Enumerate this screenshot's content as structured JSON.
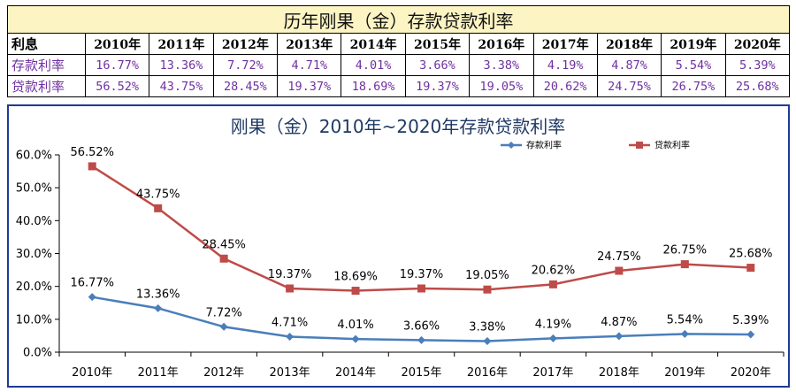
{
  "table": {
    "title": "历年刚果（金）存款贷款利率",
    "header_label": "利息",
    "years": [
      "2010年",
      "2011年",
      "2012年",
      "2013年",
      "2014年",
      "2015年",
      "2016年",
      "2017年",
      "2018年",
      "2019年",
      "2020年"
    ],
    "rows": [
      {
        "label": "存款利率",
        "values": [
          "16.77%",
          "13.36%",
          "7.72%",
          "4.71%",
          "4.01%",
          "3.66%",
          "3.38%",
          "4.19%",
          "4.87%",
          "5.54%",
          "5.39%"
        ]
      },
      {
        "label": "贷款利率",
        "values": [
          "56.52%",
          "43.75%",
          "28.45%",
          "19.37%",
          "18.69%",
          "19.37%",
          "19.05%",
          "20.62%",
          "24.75%",
          "26.75%",
          "25.68%"
        ]
      }
    ]
  },
  "chart_data": {
    "type": "line",
    "title": "刚果（金）2010年~2020年存款贷款利率",
    "categories": [
      "2010年",
      "2011年",
      "2012年",
      "2013年",
      "2014年",
      "2015年",
      "2016年",
      "2017年",
      "2018年",
      "2019年",
      "2020年"
    ],
    "series": [
      {
        "name": "存款利率",
        "color": "#4a7ebb",
        "marker": "diamond",
        "values": [
          16.77,
          13.36,
          7.72,
          4.71,
          4.01,
          3.66,
          3.38,
          4.19,
          4.87,
          5.54,
          5.39
        ],
        "labels": [
          "16.77%",
          "13.36%",
          "7.72%",
          "4.71%",
          "4.01%",
          "3.66%",
          "3.38%",
          "4.19%",
          "4.87%",
          "5.54%",
          "5.39%"
        ]
      },
      {
        "name": "贷款利率",
        "color": "#be4b48",
        "marker": "square",
        "values": [
          56.52,
          43.75,
          28.45,
          19.37,
          18.69,
          19.37,
          19.05,
          20.62,
          24.75,
          26.75,
          25.68
        ],
        "labels": [
          "56.52%",
          "43.75%",
          "28.45%",
          "19.37%",
          "18.69%",
          "19.37%",
          "19.05%",
          "20.62%",
          "24.75%",
          "26.75%",
          "25.68%"
        ]
      }
    ],
    "ylim": [
      0,
      60
    ],
    "yticks": [
      "0.0%",
      "10.0%",
      "20.0%",
      "30.0%",
      "40.0%",
      "50.0%",
      "60.0%"
    ],
    "grid": false,
    "legend_position": "top-right"
  }
}
